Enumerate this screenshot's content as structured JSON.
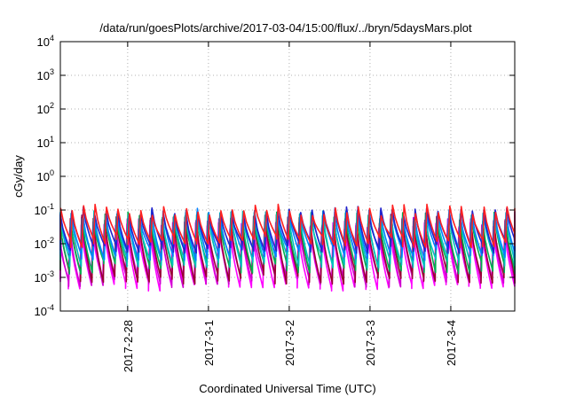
{
  "chart_data": {
    "type": "line",
    "title": "/data/run/goesPlots/archive/2017-03-04/15:00/flux/../bryn/5daysMars.plot",
    "xlabel": "Coordinated Universal Time (UTC)",
    "ylabel": "cGy/day",
    "yscale": "log",
    "ylim": [
      0.0001,
      10000
    ],
    "xlim": [
      "2017-02-27 04:00",
      "2017-03-04 19:00"
    ],
    "grid": true,
    "legend": "none",
    "y_ticks": [
      {
        "value": 0.0001,
        "base": "10",
        "exp": "-4"
      },
      {
        "value": 0.001,
        "base": "10",
        "exp": "-3"
      },
      {
        "value": 0.01,
        "base": "10",
        "exp": "-2"
      },
      {
        "value": 0.1,
        "base": "10",
        "exp": "-1"
      },
      {
        "value": 1,
        "base": "10",
        "exp": "0"
      },
      {
        "value": 10,
        "base": "10",
        "exp": "1"
      },
      {
        "value": 100,
        "base": "10",
        "exp": "2"
      },
      {
        "value": 1000,
        "base": "10",
        "exp": "3"
      },
      {
        "value": 10000,
        "base": "10",
        "exp": "4"
      }
    ],
    "x_ticks": [
      {
        "value": "2017-02-28 00:00",
        "label": "2017-2-28"
      },
      {
        "value": "2017-03-01 00:00",
        "label": "2017-3-1"
      },
      {
        "value": "2017-03-02 00:00",
        "label": "2017-3-2"
      },
      {
        "value": "2017-03-03 00:00",
        "label": "2017-3-3"
      },
      {
        "value": "2017-03-04 00:00",
        "label": "2017-3-4"
      }
    ],
    "sawtooth_period_hours": 3.4,
    "series": [
      {
        "color": "#ff00ff",
        "peak": 0.03,
        "trough": 0.0006
      },
      {
        "color": "#d000d0",
        "peak": 0.04,
        "trough": 0.0008
      },
      {
        "color": "#990033",
        "peak": 0.05,
        "trough": 0.001
      },
      {
        "color": "#00b050",
        "peak": 0.06,
        "trough": 0.002
      },
      {
        "color": "#00c0c0",
        "peak": 0.065,
        "trough": 0.003
      },
      {
        "color": "#0080ff",
        "peak": 0.075,
        "trough": 0.005
      },
      {
        "color": "#2222cc",
        "peak": 0.085,
        "trough": 0.008
      },
      {
        "color": "#ff2020",
        "peak": 0.1,
        "trough": 0.012
      }
    ]
  }
}
